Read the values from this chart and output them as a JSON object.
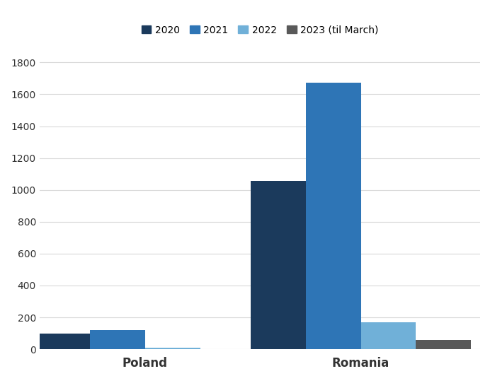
{
  "categories": [
    "Poland",
    "Romania"
  ],
  "years": [
    "2020",
    "2021",
    "2022",
    "2023 (til March)"
  ],
  "colors": [
    "#1b3a5c",
    "#2e75b6",
    "#70b0d8",
    "#595959"
  ],
  "values": {
    "Poland": [
      100,
      120,
      10,
      0
    ],
    "Romania": [
      1055,
      1675,
      170,
      60
    ]
  },
  "ylim": [
    0,
    1900
  ],
  "yticks": [
    0,
    200,
    400,
    600,
    800,
    1000,
    1200,
    1400,
    1600,
    1800
  ],
  "bar_width": 0.12,
  "background_color": "#ffffff",
  "grid_color": "#d9d9d9",
  "legend_labels": [
    "2020",
    "2021",
    "2022",
    "2023 (til March)"
  ]
}
